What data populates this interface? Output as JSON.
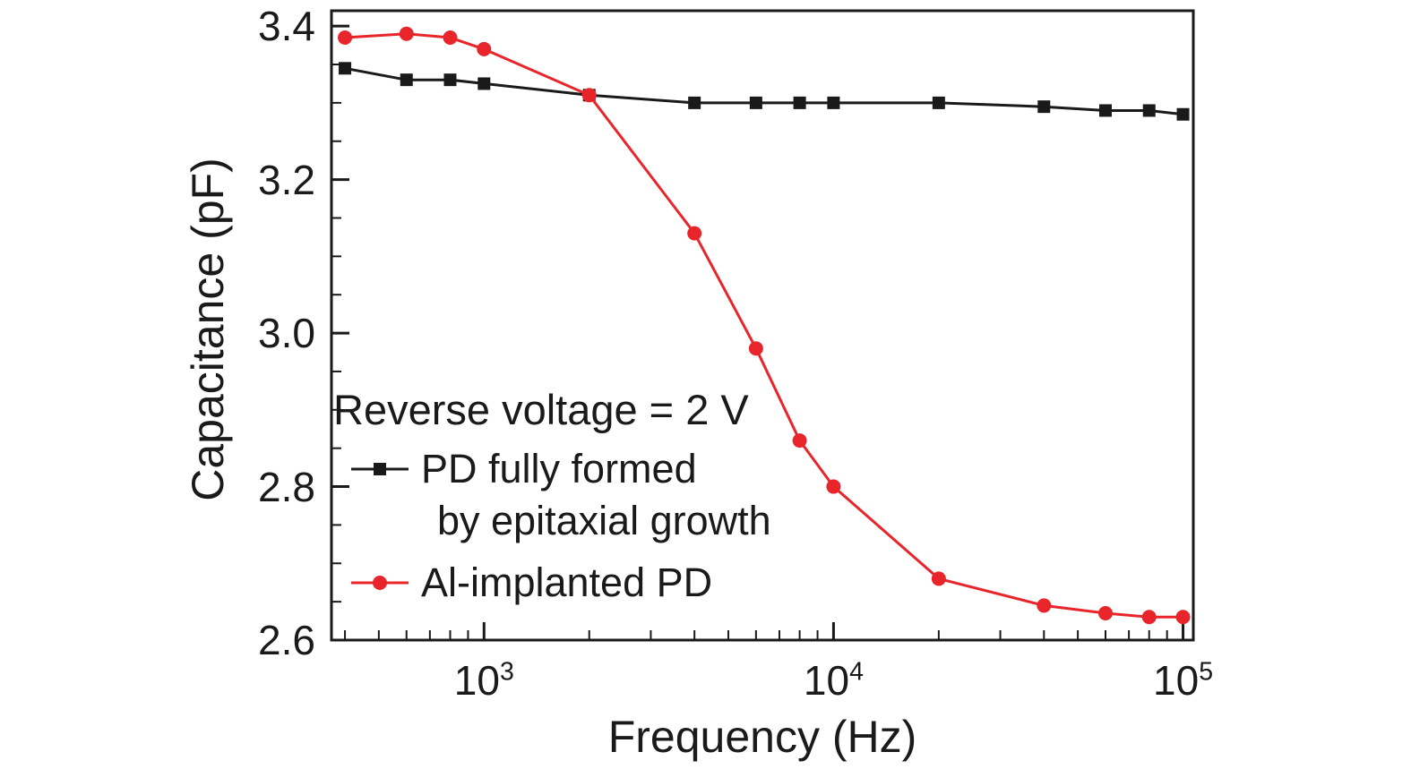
{
  "chart_data": {
    "type": "line",
    "title": "",
    "xlabel": "Frequency (Hz)",
    "ylabel": "Capacitance (pF)",
    "x_scale": "log",
    "grid": false,
    "legend_position": "inside-left",
    "annotation": "Reverse voltage = 2 V",
    "axis_color": "#1a1a1a",
    "xlim": [
      366,
      107000
    ],
    "ylim": [
      2.6,
      3.42
    ],
    "x": [
      400,
      600,
      800,
      1000,
      2000,
      4000,
      6000,
      8000,
      10000,
      20000,
      40000,
      60000,
      80000,
      100000
    ],
    "series": [
      {
        "name": "PD fully formed by epitaxial growth",
        "legend_lines": [
          "PD fully formed",
          "by epitaxial growth"
        ],
        "color": "#1a1a1a",
        "marker": "square",
        "values": [
          3.345,
          3.33,
          3.33,
          3.325,
          3.31,
          3.3,
          3.3,
          3.3,
          3.3,
          3.3,
          3.295,
          3.29,
          3.29,
          3.285
        ]
      },
      {
        "name": "Al-implanted PD",
        "legend_lines": [
          "Al-implanted PD"
        ],
        "color": "#e8252a",
        "marker": "circle",
        "values": [
          3.385,
          3.39,
          3.385,
          3.37,
          3.31,
          3.13,
          2.98,
          2.86,
          2.8,
          2.68,
          2.645,
          2.635,
          2.63,
          2.63
        ]
      }
    ],
    "x_ticks": [
      {
        "value": 1000,
        "base": "10",
        "exp": "3"
      },
      {
        "value": 10000,
        "base": "10",
        "exp": "4"
      },
      {
        "value": 100000,
        "base": "10",
        "exp": "5"
      }
    ],
    "y_ticks": [
      {
        "value": 2.6,
        "label": "2.6"
      },
      {
        "value": 2.8,
        "label": "2.8"
      },
      {
        "value": 3.0,
        "label": "3.0"
      },
      {
        "value": 3.2,
        "label": "3.2"
      },
      {
        "value": 3.4,
        "label": "3.4"
      }
    ],
    "y_minor_step": 0.05
  }
}
